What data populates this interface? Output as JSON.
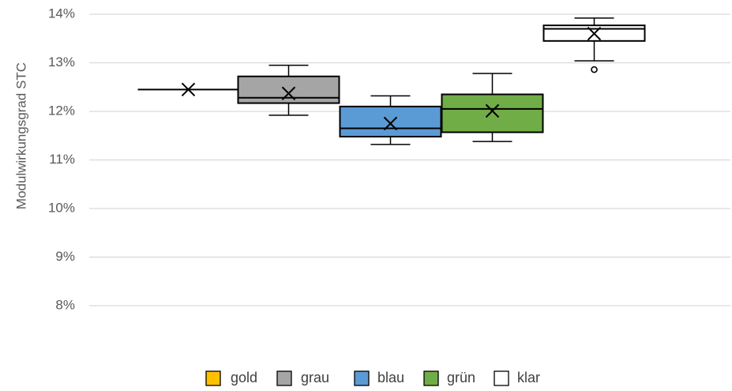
{
  "chart_data": {
    "type": "box",
    "ylabel": "Modulwirkungsgrad STC",
    "ylim": [
      8,
      14
    ],
    "y_ticks": [
      "8%",
      "9%",
      "10%",
      "11%",
      "12%",
      "13%",
      "14%"
    ],
    "y_tick_values": [
      8,
      9,
      10,
      11,
      12,
      13,
      14
    ],
    "gridlines": true,
    "legend_position": "bottom",
    "series": [
      {
        "name": "gold",
        "color": "#FFC000",
        "min": 12.45,
        "q1": 12.45,
        "median": 12.45,
        "q3": 12.45,
        "max": 12.45,
        "mean": 12.45,
        "outliers": []
      },
      {
        "name": "grau",
        "color": "#A5A5A5",
        "min": 11.92,
        "q1": 12.17,
        "median": 12.28,
        "q3": 12.72,
        "max": 12.95,
        "mean": 12.37,
        "outliers": []
      },
      {
        "name": "blau",
        "color": "#5B9BD5",
        "min": 11.32,
        "q1": 11.48,
        "median": 11.65,
        "q3": 12.1,
        "max": 12.32,
        "mean": 11.75,
        "outliers": []
      },
      {
        "name": "grün",
        "color": "#70AD47",
        "min": 11.38,
        "q1": 11.57,
        "median": 12.05,
        "q3": 12.35,
        "max": 12.78,
        "mean": 12.01,
        "outliers": []
      },
      {
        "name": "klar",
        "color": "#FFFFFF",
        "min": 13.04,
        "q1": 13.45,
        "median": 13.7,
        "q3": 13.77,
        "max": 13.92,
        "mean": 13.6,
        "outliers": [
          12.86
        ]
      }
    ]
  }
}
